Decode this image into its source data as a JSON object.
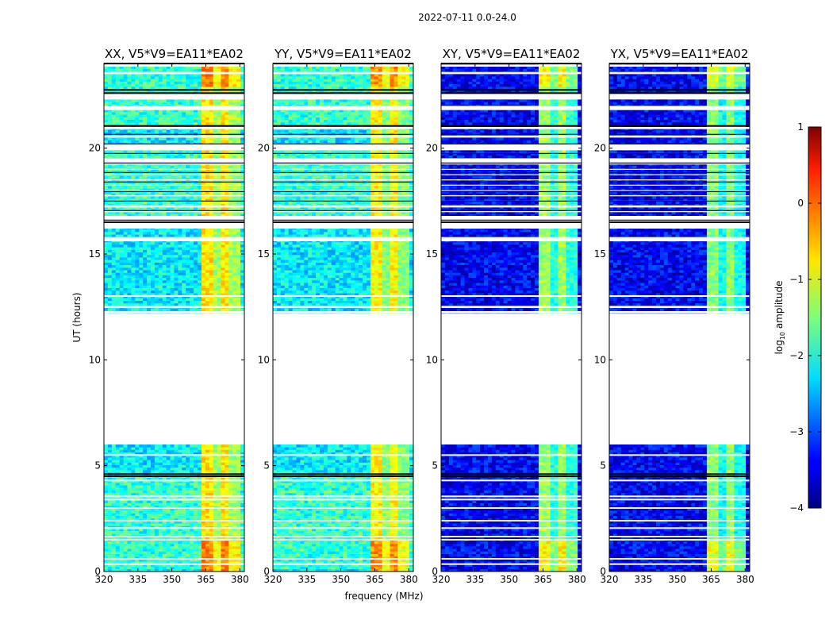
{
  "chart_data": {
    "type": "heatmap",
    "suptitle": "2022-07-11 0.0-24.0",
    "xlabel": "frequency (MHz)",
    "ylabel": "UT (hours)",
    "xlim": [
      320,
      382
    ],
    "ylim": [
      0,
      24
    ],
    "xticks": [
      320,
      335,
      350,
      365,
      380
    ],
    "yticks": [
      0,
      5,
      10,
      15,
      20
    ],
    "colorbar": {
      "label": "log",
      "label_sub": "10",
      "label_rest": " amplitude",
      "range": [
        -4,
        1
      ],
      "ticks": [
        "1",
        "0",
        "−1",
        "−2",
        "−3",
        "−4"
      ],
      "tick_values": [
        1,
        0,
        -1,
        -2,
        -3,
        -4
      ]
    },
    "data_segments_ut_hours": [
      [
        0,
        6
      ],
      [
        12.2,
        24
      ]
    ],
    "rfi_band_mhz": [
      363,
      380
    ],
    "panels": [
      {
        "title": "XX, V5*V9=EA11*EA02",
        "polarization": "XX",
        "base_level": -2.2,
        "rfi_level": -1.0
      },
      {
        "title": "YY, V5*V9=EA11*EA02",
        "polarization": "YY",
        "base_level": -2.2,
        "rfi_level": -1.1
      },
      {
        "title": "XY, V5*V9=EA11*EA02",
        "polarization": "XY",
        "base_level": -3.4,
        "rfi_level": -1.6
      },
      {
        "title": "YX, V5*V9=EA11*EA02",
        "polarization": "YX",
        "base_level": -3.4,
        "rfi_level": -1.7
      }
    ]
  }
}
